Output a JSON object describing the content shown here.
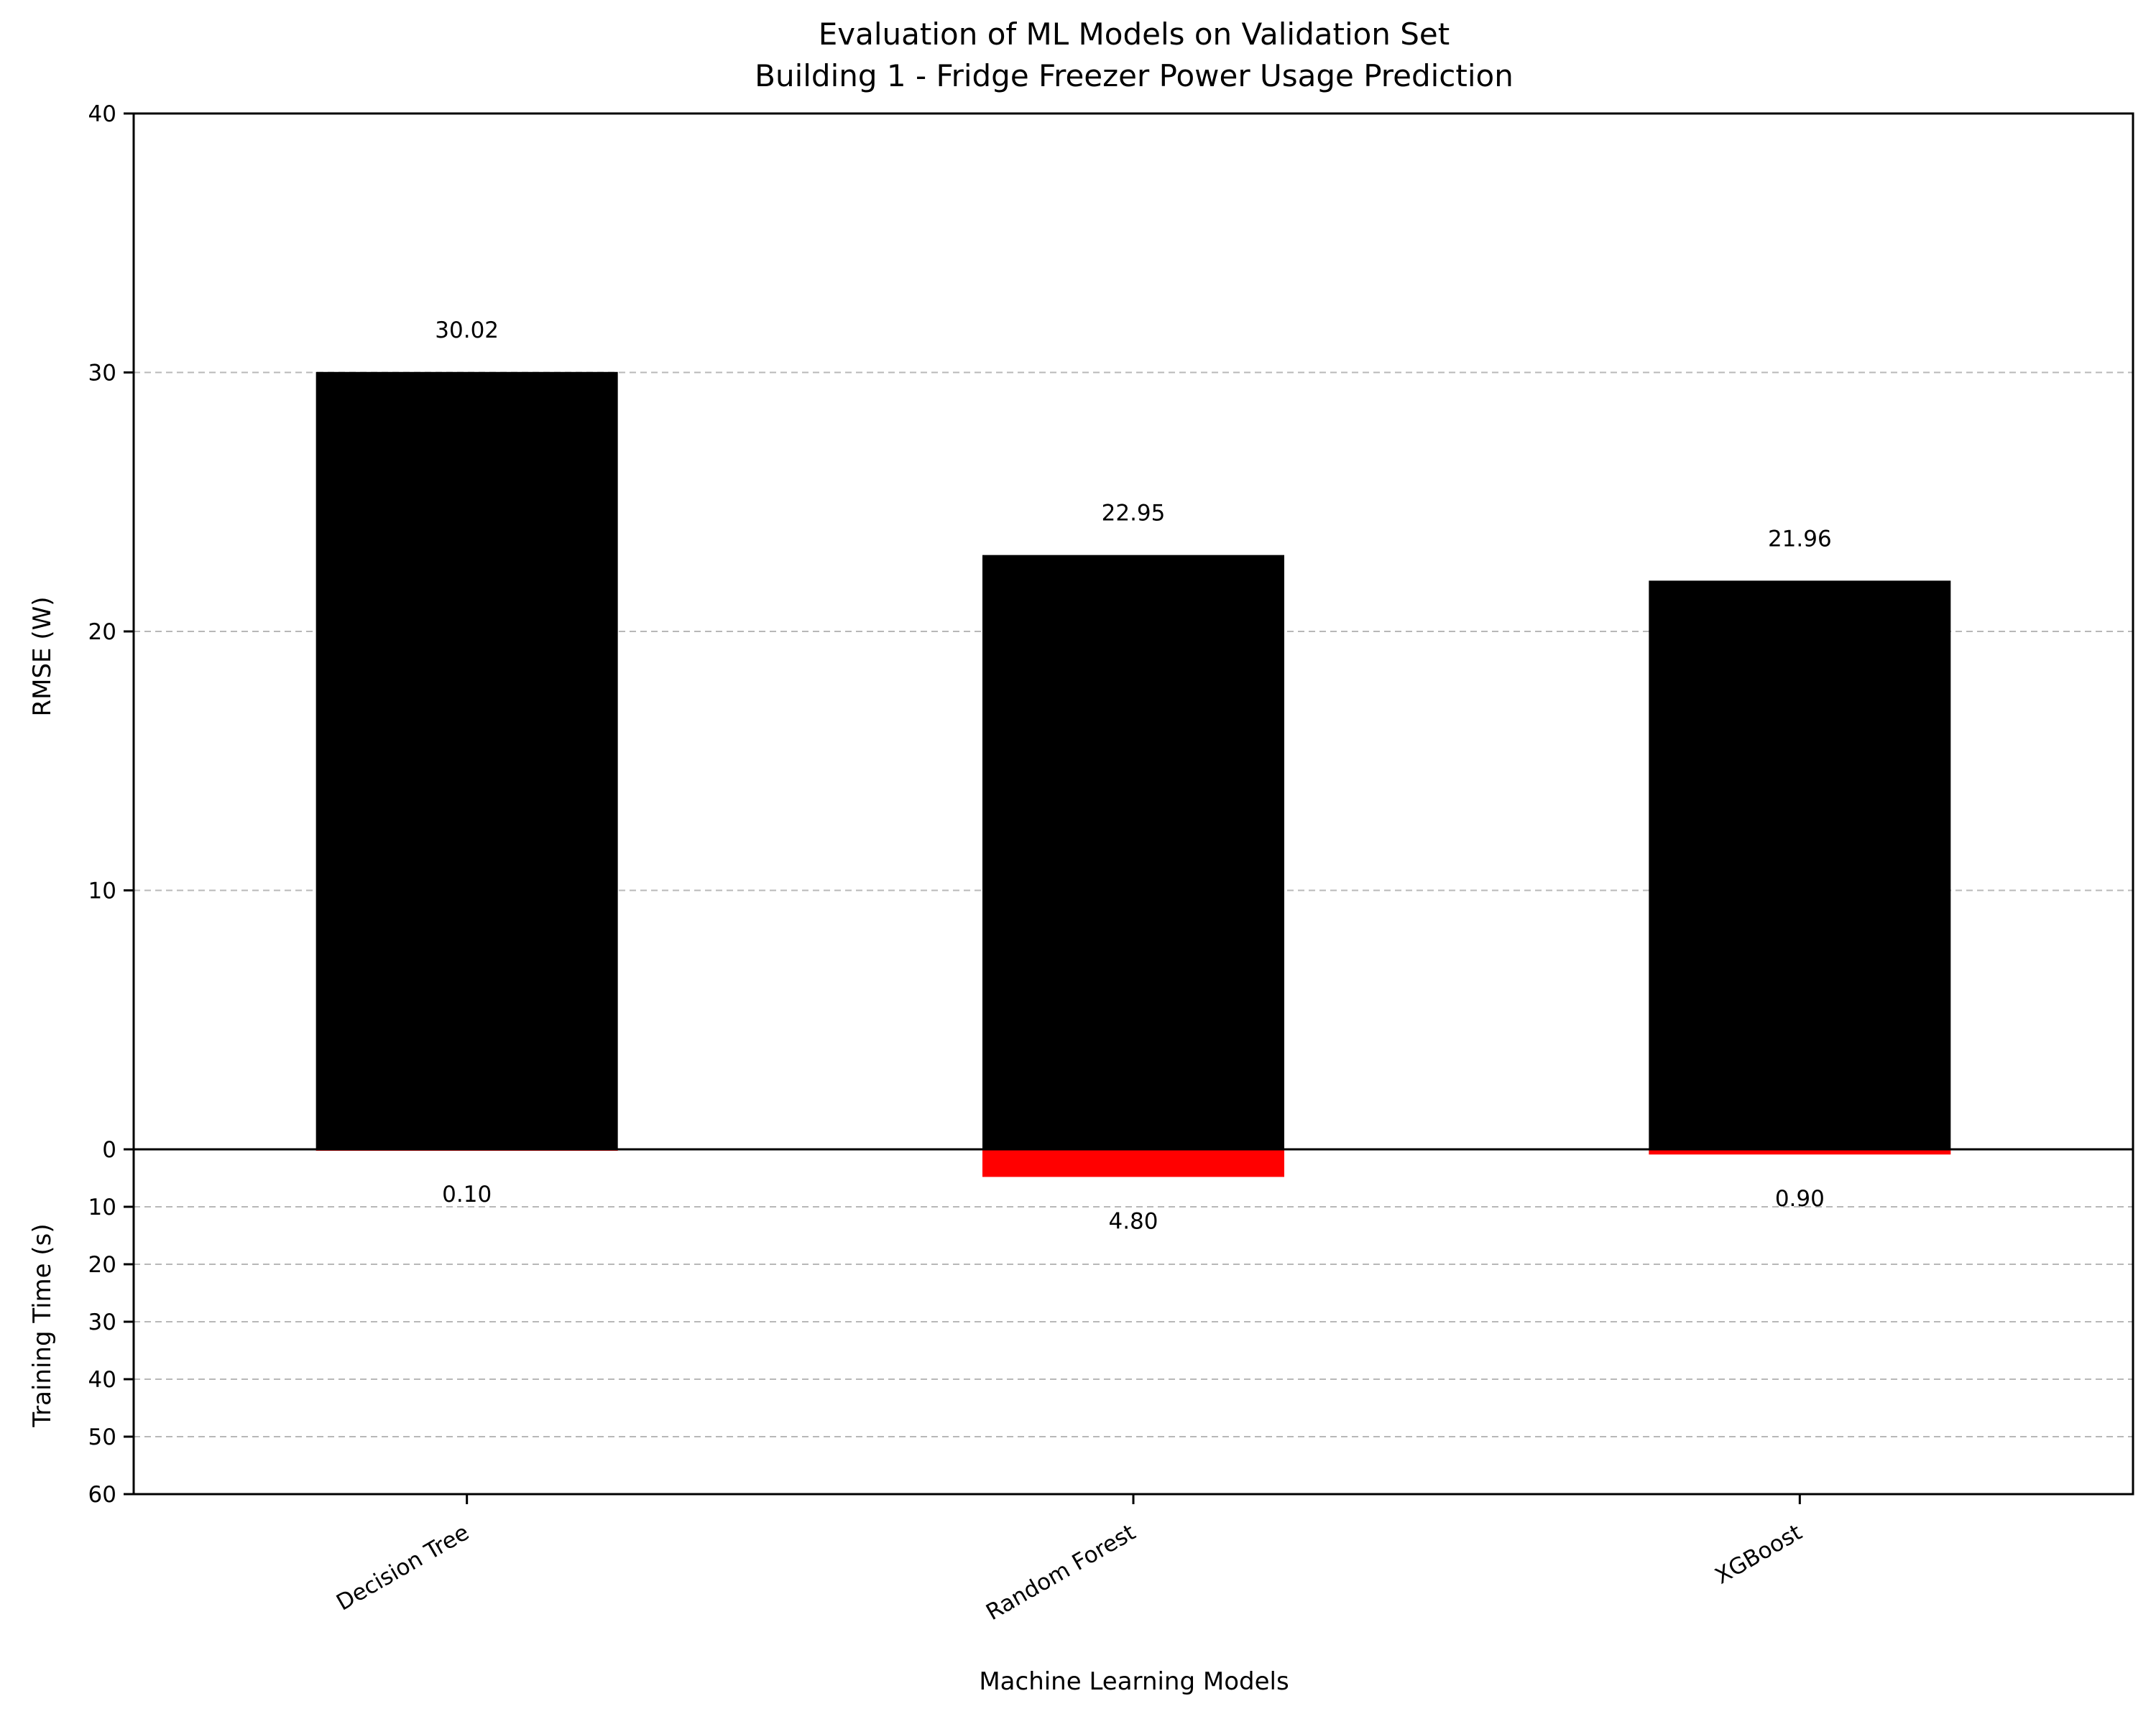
{
  "chart_data": {
    "type": "bar",
    "title": "Evaluation of ML Models on Validation Set",
    "subtitle": "Building 1 - Fridge Freezer Power Usage Prediction",
    "xlabel": "Machine Learning Models",
    "categories": [
      "Decision Tree",
      "Random Forest",
      "XGBoost"
    ],
    "upper_panel": {
      "ylabel": "RMSE (W)",
      "ylim": [
        0,
        40
      ],
      "ticks": [
        0,
        10,
        20,
        30,
        40
      ],
      "tick_labels": [
        "0",
        "10",
        "20",
        "30",
        "40"
      ],
      "values": [
        30.02,
        22.95,
        21.96
      ],
      "data_labels": [
        "30.02",
        "22.95",
        "21.96"
      ],
      "color": "#000000",
      "grid": true
    },
    "lower_panel": {
      "ylabel": "Training Time (s)",
      "ylim": [
        0,
        60
      ],
      "inverted": true,
      "ticks": [
        0,
        10,
        20,
        30,
        40,
        50,
        60
      ],
      "tick_labels": [
        "0",
        "10",
        "20",
        "30",
        "40",
        "50",
        "60"
      ],
      "values": [
        0.1,
        4.8,
        0.9
      ],
      "data_labels": [
        "0.10",
        "4.80",
        "0.90"
      ],
      "color": "#ff0000",
      "grid": true
    }
  }
}
